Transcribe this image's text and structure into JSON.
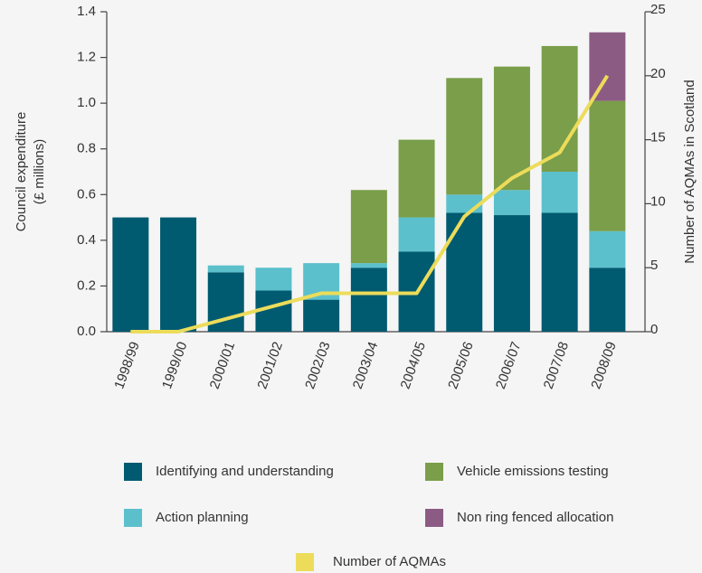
{
  "chart_data": {
    "type": "bar",
    "stacked": true,
    "ylabel": [
      "Council expenditure",
      "(£ millions)"
    ],
    "y2label": "Number of AQMAs in Scotland",
    "categories": [
      "1998/99",
      "1999/00",
      "2000/01",
      "2001/02",
      "2002/03",
      "2003/04",
      "2004/05",
      "2005/06",
      "2006/07",
      "2007/08",
      "2008/09"
    ],
    "series": [
      {
        "name": "Identifying and understanding",
        "type": "bar",
        "color": "#005a70",
        "values": [
          0.5,
          0.5,
          0.26,
          0.18,
          0.14,
          0.28,
          0.35,
          0.52,
          0.51,
          0.52,
          0.28
        ]
      },
      {
        "name": "Action planning",
        "type": "bar",
        "color": "#5bc0cc",
        "values": [
          null,
          null,
          0.03,
          0.1,
          0.16,
          0.02,
          0.15,
          0.08,
          0.11,
          0.18,
          0.16
        ]
      },
      {
        "name": "Vehicle emissions testing",
        "type": "bar",
        "color": "#7a9e49",
        "values": [
          null,
          null,
          null,
          null,
          null,
          0.32,
          0.34,
          0.51,
          0.54,
          0.55,
          0.57
        ]
      },
      {
        "name": "Non ring fenced allocation",
        "type": "bar",
        "color": "#8c5b84",
        "values": [
          null,
          null,
          null,
          null,
          null,
          null,
          null,
          null,
          null,
          null,
          0.3
        ]
      },
      {
        "name": "Number of AQMAs",
        "type": "line",
        "axis": "y2",
        "color": "#ecdc5a",
        "values": [
          0,
          0,
          1,
          2,
          3,
          3,
          3,
          9,
          12,
          14,
          20
        ]
      }
    ],
    "ylim": [
      0,
      1.4
    ],
    "yticks": [
      {
        "value": 0,
        "label": "0.0"
      },
      0.2,
      0.4,
      0.6,
      0.8,
      {
        "value": 1,
        "label": "1.0"
      },
      1.2,
      1.4
    ],
    "y2lim": [
      0,
      25
    ],
    "y2ticks": [
      0,
      5,
      10,
      15,
      20,
      25
    ]
  }
}
